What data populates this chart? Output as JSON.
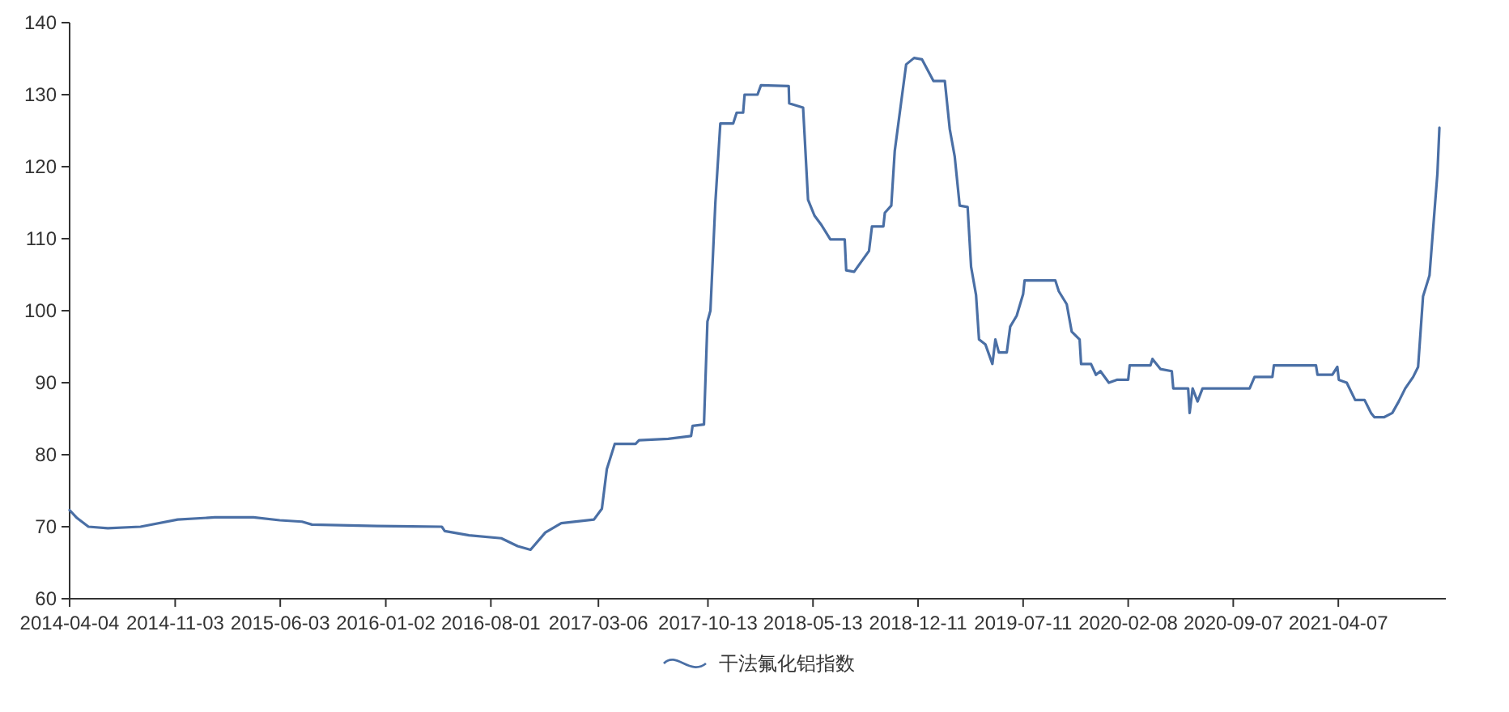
{
  "chart_data": {
    "type": "line",
    "xlim": [
      "2014-04-04",
      "2021-11-10"
    ],
    "ylim": [
      60,
      140
    ],
    "xticks": [
      "2014-04-04",
      "2014-11-03",
      "2015-06-03",
      "2016-01-02",
      "2016-08-01",
      "2017-03-06",
      "2017-10-13",
      "2018-05-13",
      "2018-12-11",
      "2019-07-11",
      "2020-02-08",
      "2020-09-07",
      "2021-04-07"
    ],
    "yticks": [
      60,
      70,
      80,
      90,
      100,
      110,
      120,
      130,
      140
    ],
    "grid": false,
    "legend": "bottom",
    "marker": "none",
    "line_style": "solid",
    "series": [
      {
        "name": "干法氟化铝指数",
        "color": "#4a6fa5",
        "x": [
          "2014-04-04",
          "2014-04-19",
          "2014-05-12",
          "2014-06-20",
          "2014-08-25",
          "2014-11-08",
          "2015-01-22",
          "2015-04-10",
          "2015-06-02",
          "2015-07-17",
          "2015-08-06",
          "2015-12-15",
          "2016-04-24",
          "2016-04-30",
          "2016-06-18",
          "2016-08-22",
          "2016-09-24",
          "2016-10-20",
          "2016-11-19",
          "2016-12-21",
          "2017-02-25",
          "2017-03-13",
          "2017-03-23",
          "2017-04-08",
          "2017-05-20",
          "2017-05-27",
          "2017-07-25",
          "2017-09-09",
          "2017-09-12",
          "2017-10-05",
          "2017-10-12",
          "2017-10-18",
          "2017-10-28",
          "2017-11-07",
          "2017-12-03",
          "2017-12-10",
          "2017-12-23",
          "2017-12-26",
          "2018-01-21",
          "2018-01-28",
          "2018-03-25",
          "2018-03-26",
          "2018-04-23",
          "2018-04-26",
          "2018-05-03",
          "2018-05-16",
          "2018-05-29",
          "2018-06-17",
          "2018-07-16",
          "2018-07-19",
          "2018-08-04",
          "2018-09-03",
          "2018-09-09",
          "2018-10-02",
          "2018-10-05",
          "2018-10-18",
          "2018-10-25",
          "2018-11-07",
          "2018-11-17",
          "2018-12-03",
          "2018-12-19",
          "2019-01-11",
          "2019-02-03",
          "2019-02-13",
          "2019-02-23",
          "2019-03-05",
          "2019-03-21",
          "2019-03-28",
          "2019-04-07",
          "2019-04-13",
          "2019-04-26",
          "2019-05-10",
          "2019-05-16",
          "2019-05-23",
          "2019-06-08",
          "2019-06-15",
          "2019-06-28",
          "2019-07-11",
          "2019-07-14",
          "2019-09-14",
          "2019-09-21",
          "2019-10-07",
          "2019-10-17",
          "2019-11-02",
          "2019-11-05",
          "2019-11-25",
          "2019-12-05",
          "2019-12-14",
          "2019-12-31",
          "2020-01-16",
          "2020-02-08",
          "2020-02-11",
          "2020-03-24",
          "2020-03-28",
          "2020-04-13",
          "2020-05-06",
          "2020-05-09",
          "2020-06-08",
          "2020-06-11",
          "2020-06-17",
          "2020-06-27",
          "2020-07-07",
          "2020-10-10",
          "2020-10-20",
          "2020-11-25",
          "2020-11-28",
          "2021-02-21",
          "2021-02-24",
          "2021-03-26",
          "2021-04-05",
          "2021-04-08",
          "2021-04-24",
          "2021-05-11",
          "2021-05-30",
          "2021-06-12",
          "2021-06-19",
          "2021-07-08",
          "2021-07-25",
          "2021-08-07",
          "2021-08-20",
          "2021-09-05",
          "2021-09-15",
          "2021-09-25",
          "2021-10-08",
          "2021-10-24",
          "2021-10-28"
        ],
        "values": [
          72.3,
          71.2,
          70,
          69.8,
          70,
          71,
          71.3,
          71.3,
          70.9,
          70.7,
          70.3,
          70.1,
          70,
          69.4,
          68.8,
          68.4,
          67.3,
          66.8,
          69.2,
          70.5,
          71,
          72.5,
          78,
          81.5,
          81.5,
          82,
          82.2,
          82.6,
          84,
          84.2,
          98.5,
          100,
          115,
          126,
          126,
          127.5,
          127.5,
          130,
          130,
          131.3,
          131.2,
          128.8,
          128.2,
          124.4,
          115.4,
          113.2,
          112,
          109.9,
          109.9,
          105.6,
          105.4,
          108.3,
          111.7,
          111.7,
          113.6,
          114.6,
          122.2,
          129,
          134.2,
          135.1,
          134.9,
          131.9,
          131.9,
          125.2,
          121.4,
          114.6,
          114.4,
          106.1,
          102.2,
          96,
          95.3,
          92.6,
          96,
          94.2,
          94.2,
          97.8,
          99.3,
          102.3,
          104.2,
          104.2,
          102.7,
          100.9,
          97.1,
          96,
          92.6,
          92.6,
          91.1,
          91.6,
          90,
          90.4,
          90.4,
          92.4,
          92.4,
          93.3,
          91.9,
          91.6,
          89.2,
          89.2,
          85.8,
          89.2,
          87.4,
          89.2,
          89.2,
          90.8,
          90.8,
          92.4,
          92.4,
          91.1,
          91.1,
          92.2,
          90.4,
          90,
          87.6,
          87.6,
          85.8,
          85.2,
          85.2,
          85.8,
          87.4,
          89.2,
          90.8,
          92.2,
          102,
          104.9,
          119.1,
          125.4
        ]
      }
    ]
  }
}
